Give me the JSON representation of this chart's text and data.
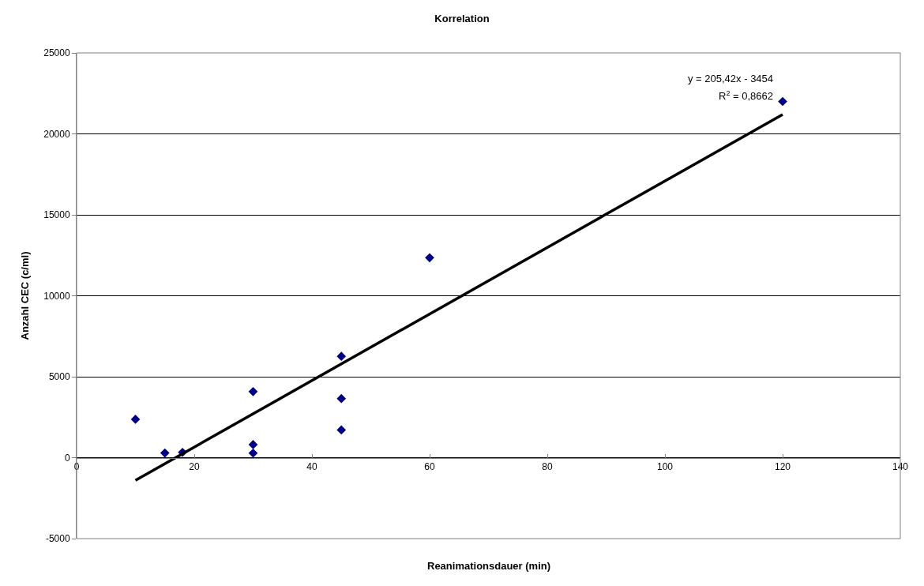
{
  "chart_data": {
    "type": "scatter",
    "title": "Korrelation",
    "xlabel": "Reanimationsdauer (min)",
    "ylabel": "Anzahl CEC (c/ml)",
    "x": [
      10,
      15,
      18,
      30,
      30,
      30,
      45,
      45,
      45,
      60,
      120
    ],
    "series": [
      {
        "color": "#000080",
        "marker": "diamond",
        "values": [
          2370,
          290,
          330,
          4080,
          810,
          280,
          6260,
          3650,
          1710,
          12350,
          22000
        ]
      },
      {
        "type": "line",
        "color": "#000000",
        "marker": "none",
        "x": [
          10,
          120
        ],
        "values": [
          -1400,
          21200
        ]
      }
    ],
    "annotations": [
      "y = 205,42x - 3454",
      "R$^{2}$ = 0,8662"
    ],
    "xlim": [
      0,
      140
    ],
    "xticks": [
      0,
      20,
      40,
      60,
      80,
      100,
      120,
      140
    ],
    "ylim": [
      -5000,
      25000
    ],
    "yticks": [
      -5000,
      0,
      5000,
      10000,
      15000,
      20000,
      25000
    ],
    "grid": "y",
    "legend": false
  }
}
